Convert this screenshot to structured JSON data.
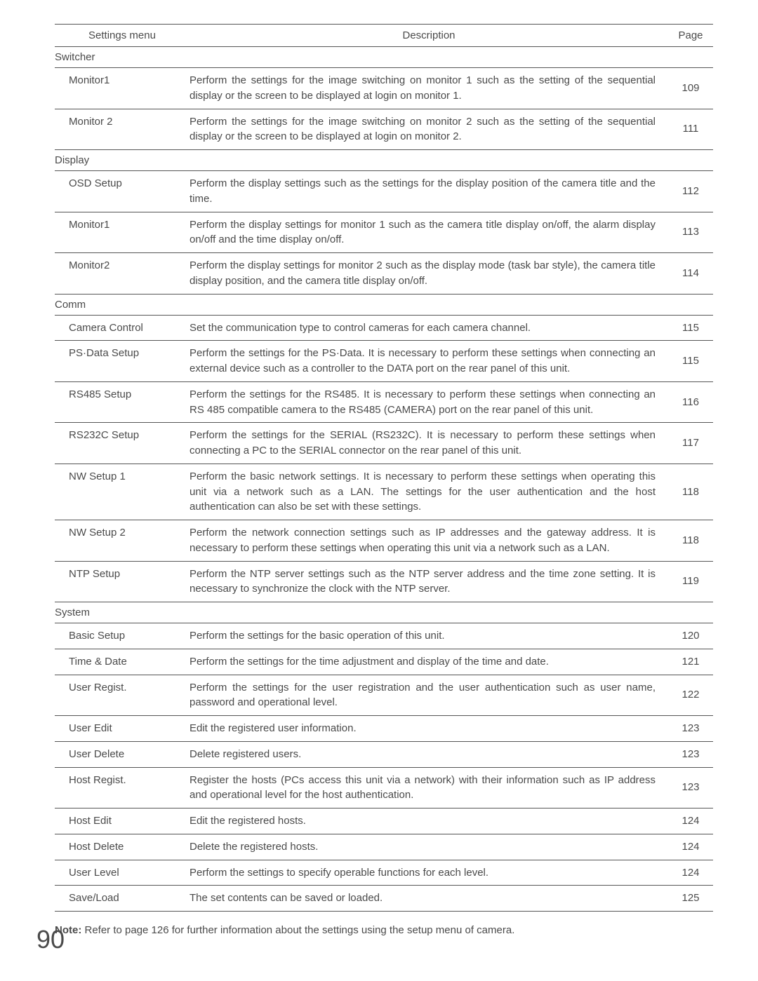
{
  "header": {
    "settings": "Settings menu",
    "description": "Description",
    "page": "Page"
  },
  "sections": [
    {
      "title": "Switcher",
      "items": [
        {
          "menu": "Monitor1",
          "desc": "Perform the settings for the image switching on monitor 1 such as the setting of the sequential display or the screen to be displayed at login on monitor 1.",
          "page": "109"
        },
        {
          "menu": "Monitor 2",
          "desc": "Perform the settings for the image switching on monitor 2 such as the setting of the sequential display or the screen to be displayed at login on monitor 2.",
          "page": "111"
        }
      ]
    },
    {
      "title": "Display",
      "items": [
        {
          "menu": "OSD Setup",
          "desc": "Perform the display settings such as the settings for the display position of the camera title and the time.",
          "page": "112"
        },
        {
          "menu": "Monitor1",
          "desc": "Perform the display settings for monitor 1 such as the camera title display on/off, the alarm display on/off and the time display on/off.",
          "page": "113"
        },
        {
          "menu": "Monitor2",
          "desc": "Perform the display settings for monitor 2 such as the display mode (task bar style), the camera title display position, and the camera title display on/off.",
          "page": "114"
        }
      ]
    },
    {
      "title": "Comm",
      "items": [
        {
          "menu": "Camera Control",
          "desc": "Set the communication type to control cameras for each camera channel.",
          "page": "115"
        },
        {
          "menu": "PS·Data Setup",
          "desc": "Perform the settings for the PS·Data. It is necessary to perform these settings when connecting an external device such as a controller to the DATA port on the rear panel of this unit.",
          "page": "115"
        },
        {
          "menu": "RS485 Setup",
          "desc": "Perform the settings for the RS485. It is necessary to perform these settings when connecting an RS 485 compatible camera to the RS485 (CAMERA) port on the rear panel of this unit.",
          "page": "116"
        },
        {
          "menu": "RS232C Setup",
          "desc": "Perform the settings for the SERIAL (RS232C). It is necessary to perform these settings when connecting a PC to the SERIAL connector on the rear panel of this unit.",
          "page": "117"
        },
        {
          "menu": "NW Setup 1",
          "desc": "Perform the basic network settings. It is necessary to perform these settings when operating this unit via a network such as a LAN. The settings for the user authentication and the host authentication can also be set with these settings.",
          "page": "118"
        },
        {
          "menu": "NW Setup 2",
          "desc": "Perform the network connection settings such as IP addresses and the gateway address. It is necessary to perform these settings when operating this unit via a network such as a LAN.",
          "page": "118"
        },
        {
          "menu": "NTP Setup",
          "desc": "Perform the NTP server settings such as the NTP server address and the time zone setting. It is necessary to synchronize the clock with the NTP server.",
          "page": "119"
        }
      ]
    },
    {
      "title": "System",
      "items": [
        {
          "menu": "Basic Setup",
          "desc": "Perform the settings for the basic operation of this unit.",
          "page": "120"
        },
        {
          "menu": "Time & Date",
          "desc": "Perform the settings for the time adjustment and display of the time and date.",
          "page": "121"
        },
        {
          "menu": "User Regist.",
          "desc": "Perform the settings for the user registration and the user authentication such as user name, password and operational level.",
          "page": "122"
        },
        {
          "menu": "User Edit",
          "desc": "Edit the registered user information.",
          "page": "123"
        },
        {
          "menu": "User Delete",
          "desc": "Delete registered users.",
          "page": "123"
        },
        {
          "menu": "Host Regist.",
          "desc": "Register the hosts (PCs access this unit via a network) with their information such as IP address and operational level for the host authentication.",
          "page": "123"
        },
        {
          "menu": "Host Edit",
          "desc": "Edit the registered hosts.",
          "page": "124"
        },
        {
          "menu": "Host Delete",
          "desc": "Delete the registered hosts.",
          "page": "124"
        },
        {
          "menu": "User Level",
          "desc": "Perform the settings to specify operable functions for each level.",
          "page": "124"
        },
        {
          "menu": "Save/Load",
          "desc": "The set contents can be saved or loaded.",
          "page": "125"
        }
      ]
    }
  ],
  "note": {
    "label": "Note:",
    "text": " Refer to page 126 for further information about the settings using the setup menu of camera."
  },
  "page_number": "90",
  "style": {
    "font_family": "Arial, Helvetica, sans-serif",
    "text_color": "#4a4a4a",
    "background_color": "#ffffff",
    "border_color": "#555555",
    "font_size_body": 15,
    "font_size_page_number": 36,
    "line_height": 1.45,
    "col_widths": {
      "settings": 192,
      "page": 64
    }
  }
}
